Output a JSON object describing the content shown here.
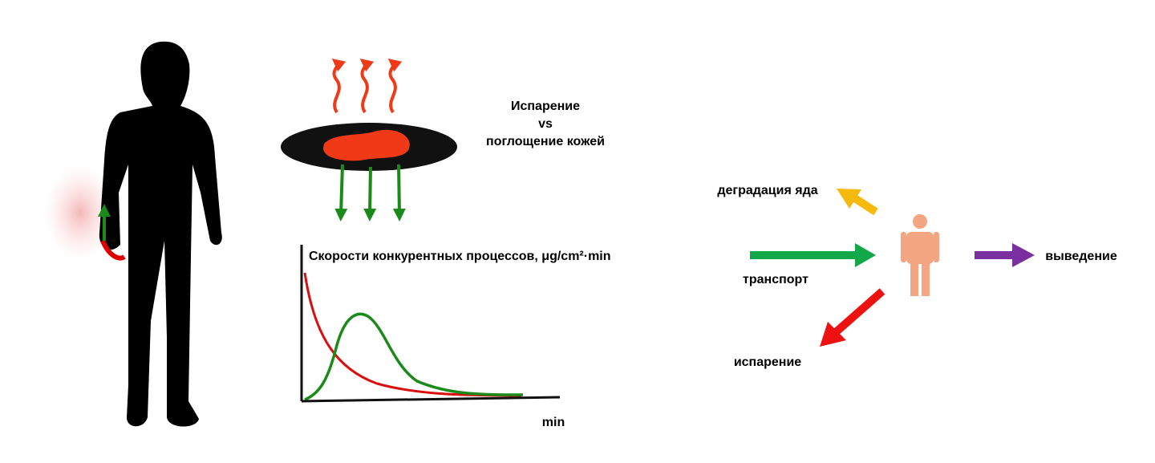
{
  "evaporation_panel": {
    "title_lines": [
      "Испарение",
      "vs",
      "поглощение кожей"
    ]
  },
  "rate_plot": {
    "title": "Скорости конкурентных процессов, μg/cm²·min",
    "x_label": "min"
  },
  "fate_diagram": {
    "degradation": "деградация яда",
    "transport": "транспорт",
    "excretion": "выведение",
    "evaporation": "испарение"
  }
}
